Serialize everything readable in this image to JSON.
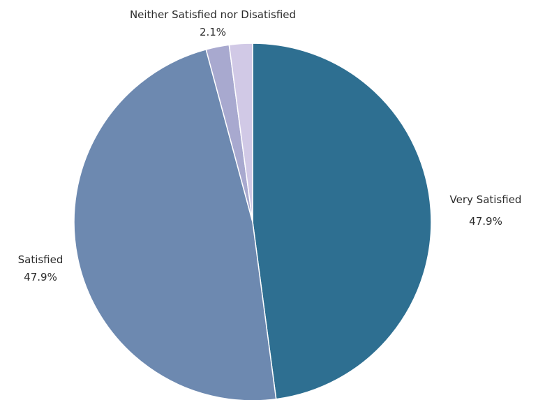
{
  "chart_data": {
    "type": "pie",
    "title": "",
    "slices": [
      {
        "label": "Very Satisfied",
        "pct_label": "47.9%",
        "value": 47.9,
        "color": "#2e6f91"
      },
      {
        "label": "Satisfied",
        "pct_label": "47.9%",
        "value": 47.9,
        "color": "#6d89b0"
      },
      {
        "label": "",
        "pct_label": "",
        "value": 2.1,
        "color": "#a8a9cf"
      },
      {
        "label": "Neither Satisfied nor Disatisfied",
        "pct_label": "2.1%",
        "value": 2.1,
        "color": "#d1c9e6"
      }
    ],
    "start_angle": "12 o'clock",
    "direction": "clockwise",
    "legend": "none"
  }
}
